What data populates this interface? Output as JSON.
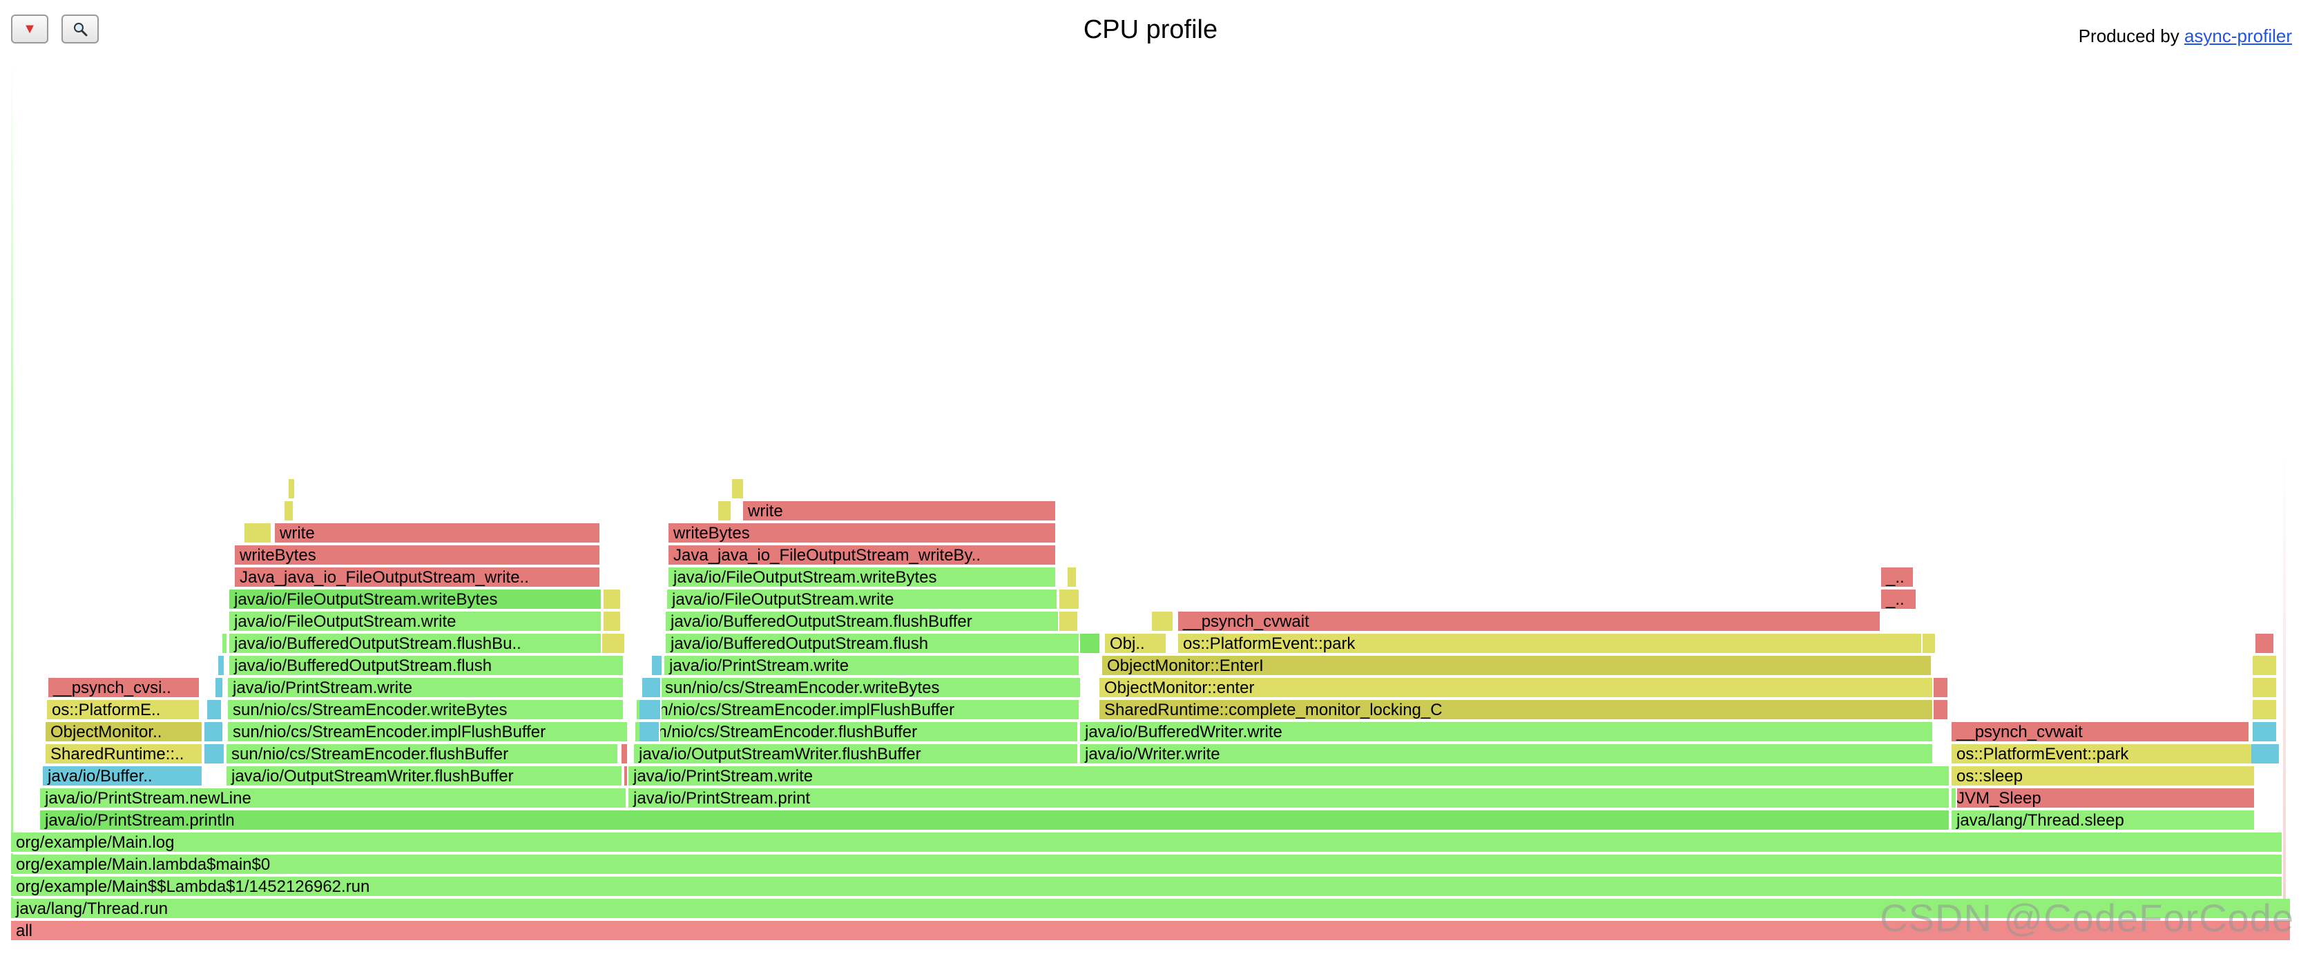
{
  "toolbar": {
    "reverse_icon": "▼",
    "search_icon": "🔍"
  },
  "title": "CPU profile",
  "producer": {
    "prefix": "Produced by ",
    "link_label": "async-profiler"
  },
  "watermark": "CSDN @CodeForCode",
  "colors": {
    "green": "#92f07a",
    "green_mid": "#7be366",
    "red": "#e47b7b",
    "red_light": "#ee8a8a",
    "yellow": "#dede66",
    "yellow_mid": "#cccc55",
    "aqua": "#6cc8dc"
  },
  "frames": [
    {
      "label": "all"
    },
    {
      "label": "java/lang/Thread.run"
    },
    {
      "label": "org/example/Main$$Lambda$1/1452126962.run"
    },
    {
      "label": "org/example/Main.lambda$main$0"
    },
    {
      "label": "org/example/Main.log"
    },
    {
      "label": "java/io/PrintStream.println"
    },
    {
      "label": "java/lang/Thread.sleep"
    },
    {
      "label": "java/io/PrintStream.newLine"
    },
    {
      "label": "java/io/PrintStream.print"
    },
    {
      "label": "JVM_Sleep"
    },
    {
      "label": "java/io/Buffer.."
    },
    {
      "label": "java/io/OutputStreamWriter.flushBuffer"
    },
    {
      "label": "java/io/PrintStream.write"
    },
    {
      "label": "os::sleep"
    },
    {
      "label": "SharedRuntime::.."
    },
    {
      "label": "sun/nio/cs/StreamEncoder.flushBuffer"
    },
    {
      "label": "java/io/OutputStreamWriter.flushBuffer"
    },
    {
      "label": "java/io/Writer.write"
    },
    {
      "label": "os::PlatformEvent::park"
    },
    {
      "label": "ObjectMonitor.."
    },
    {
      "label": "sun/nio/cs/StreamEncoder.implFlushBuffer"
    },
    {
      "label": "sun/nio/cs/StreamEncoder.flushBuffer"
    },
    {
      "label": "java/io/BufferedWriter.write"
    },
    {
      "label": "__psynch_cvwait"
    },
    {
      "label": "os::PlatformE.."
    },
    {
      "label": "sun/nio/cs/StreamEncoder.writeBytes"
    },
    {
      "label": "sun/nio/cs/StreamEncoder.implFlushBuffer"
    },
    {
      "label": "SharedRuntime::complete_monitor_locking_C"
    },
    {
      "label": "__psynch_cvsi.."
    },
    {
      "label": "java/io/PrintStream.write"
    },
    {
      "label": "sun/nio/cs/StreamEncoder.writeBytes"
    },
    {
      "label": "ObjectMonitor::enter"
    },
    {
      "label": "java/io/BufferedOutputStream.flush"
    },
    {
      "label": "java/io/PrintStream.write"
    },
    {
      "label": "ObjectMonitor::EnterI"
    },
    {
      "label": "java/io/BufferedOutputStream.flushBu.."
    },
    {
      "label": "java/io/BufferedOutputStream.flush"
    },
    {
      "label": "Obj.."
    },
    {
      "label": "os::PlatformEvent::park"
    },
    {
      "label": "java/io/FileOutputStream.write"
    },
    {
      "label": "java/io/BufferedOutputStream.flushBuffer"
    },
    {
      "label": "__psynch_cvwait"
    },
    {
      "label": "java/io/FileOutputStream.writeBytes"
    },
    {
      "label": "java/io/FileOutputStream.write"
    },
    {
      "label": "_.."
    },
    {
      "label": "Java_java_io_FileOutputStream_write.."
    },
    {
      "label": "java/io/FileOutputStream.writeBytes"
    },
    {
      "label": "_.."
    },
    {
      "label": "writeBytes"
    },
    {
      "label": "Java_java_io_FileOutputStream_writeBy.."
    },
    {
      "label": "write"
    },
    {
      "label": "writeBytes"
    },
    {
      "label": "write"
    }
  ],
  "slivers": [
    "",
    "",
    "",
    "",
    "",
    "",
    "",
    "",
    "",
    "",
    "",
    "",
    "",
    "",
    "",
    "",
    "",
    "",
    "",
    "",
    "",
    "",
    "",
    "",
    "",
    "",
    "",
    "",
    "",
    "",
    ""
  ]
}
